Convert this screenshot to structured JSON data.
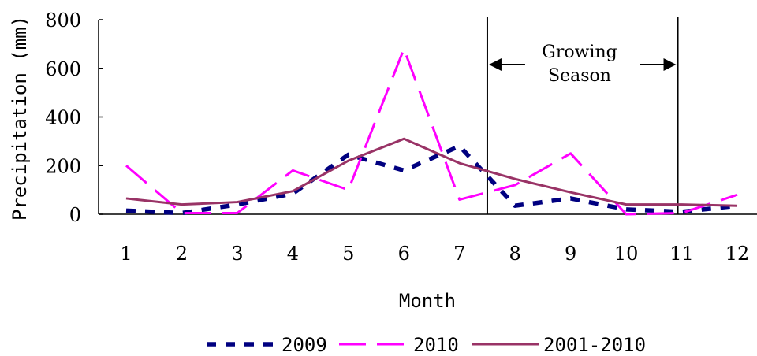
{
  "chart_data": {
    "type": "line",
    "title": "",
    "xlabel": "Month",
    "ylabel": "Precipitation (mm)",
    "categories": [
      "1",
      "2",
      "3",
      "4",
      "5",
      "6",
      "7",
      "8",
      "9",
      "10",
      "11",
      "12"
    ],
    "ylim": [
      0,
      800
    ],
    "yticks": [
      "0",
      "200",
      "400",
      "600",
      "800"
    ],
    "grid": false,
    "legend_position": "bottom",
    "series": [
      {
        "name": "2009",
        "style": "dotted",
        "color": "#000080",
        "values": [
          15,
          5,
          40,
          85,
          245,
          180,
          280,
          35,
          65,
          20,
          10,
          35
        ]
      },
      {
        "name": "2010",
        "style": "dashed",
        "color": "#ff00ff",
        "values": [
          200,
          5,
          5,
          180,
          100,
          680,
          60,
          120,
          250,
          0,
          5,
          80
        ]
      },
      {
        "name": "2001-2010",
        "style": "solid",
        "color": "#993366",
        "values": [
          65,
          40,
          50,
          95,
          220,
          310,
          210,
          145,
          90,
          40,
          40,
          35
        ]
      }
    ],
    "annotations": {
      "growing_season_label_1": "Growing",
      "growing_season_label_2": "Season",
      "growing_season_start": 7.5,
      "growing_season_end": 11.0
    }
  }
}
